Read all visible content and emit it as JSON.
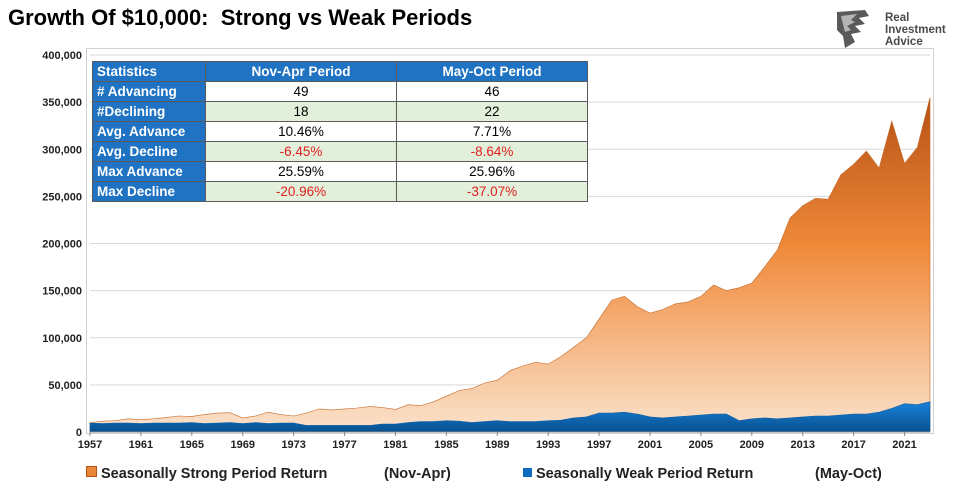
{
  "title": "Growth Of $10,000:  Strong vs Weak Periods",
  "logo": {
    "line1": "Real",
    "line2": "Investment",
    "line3": "Advice",
    "icon": "eagle-head-icon"
  },
  "colors": {
    "strong": "#e8863a",
    "strong_dark": "#b85418",
    "strong_light": "#fad9bd",
    "weak": "#0d6cc0",
    "header": "#1f73c2",
    "alt_row": "#e2efda",
    "negative": "#e02020"
  },
  "stats_table": {
    "headers": [
      "Statistics",
      "Nov-Apr Period",
      "May-Oct Period"
    ],
    "rows": [
      {
        "label": "# Advancing",
        "nov_apr": "49",
        "may_oct": "46"
      },
      {
        "label": "#Declining",
        "nov_apr": "18",
        "may_oct": "22"
      },
      {
        "label": "Avg. Advance",
        "nov_apr": "10.46%",
        "may_oct": "7.71%"
      },
      {
        "label": "Avg. Decline",
        "nov_apr": "-6.45%",
        "may_oct": "-8.64%"
      },
      {
        "label": "Max Advance",
        "nov_apr": "25.59%",
        "may_oct": "25.96%"
      },
      {
        "label": "Max Decline",
        "nov_apr": "-20.96%",
        "may_oct": "-37.07%"
      }
    ]
  },
  "legend": {
    "strong_label": "Seasonally Strong Period Return",
    "strong_period": "(Nov-Apr)",
    "weak_label": "Seasonally Weak Period Return",
    "weak_period": "(May-Oct)"
  },
  "chart_data": {
    "type": "area",
    "title": "Growth Of $10,000:  Strong vs Weak Periods",
    "ylim": [
      0,
      400000
    ],
    "yticks": [
      0,
      50000,
      100000,
      150000,
      200000,
      250000,
      300000,
      350000,
      400000
    ],
    "ytick_labels": [
      "0",
      "50,000",
      "100,000",
      "150,000",
      "200,000",
      "250,000",
      "300,000",
      "350,000",
      "400,000"
    ],
    "xlim": [
      1957,
      2023
    ],
    "xticks": [
      1957,
      1961,
      1965,
      1969,
      1973,
      1977,
      1981,
      1985,
      1989,
      1993,
      1997,
      2001,
      2005,
      2009,
      2013,
      2017,
      2021
    ],
    "grid": "horizontal",
    "legend_position": "bottom",
    "x": [
      1957,
      1958,
      1959,
      1960,
      1961,
      1962,
      1963,
      1964,
      1965,
      1966,
      1967,
      1968,
      1969,
      1970,
      1971,
      1972,
      1973,
      1974,
      1975,
      1976,
      1977,
      1978,
      1979,
      1980,
      1981,
      1982,
      1983,
      1984,
      1985,
      1986,
      1987,
      1988,
      1989,
      1990,
      1991,
      1992,
      1993,
      1994,
      1995,
      1996,
      1997,
      1998,
      1999,
      2000,
      2001,
      2002,
      2003,
      2004,
      2005,
      2006,
      2007,
      2008,
      2009,
      2010,
      2011,
      2012,
      2013,
      2014,
      2015,
      2016,
      2017,
      2018,
      2019,
      2020,
      2021,
      2022,
      2023
    ],
    "series": [
      {
        "name": "Seasonally Strong Period Return",
        "values": [
          10000,
          11500,
          12000,
          14000,
          13000,
          14000,
          15500,
          17000,
          16500,
          18500,
          20000,
          20500,
          15000,
          17000,
          21000,
          18500,
          17000,
          20000,
          24500,
          23500,
          24500,
          25500,
          27000,
          26000,
          24000,
          29000,
          28000,
          32000,
          38000,
          44000,
          46000,
          52000,
          55000,
          65000,
          70000,
          74000,
          72000,
          80000,
          90000,
          100000,
          120000,
          140000,
          144000,
          133000,
          126000,
          130000,
          136000,
          138000,
          144000,
          156000,
          150000,
          153000,
          158000,
          175000,
          193000,
          227000,
          240000,
          248000,
          247000,
          273000,
          284000,
          298000,
          280000,
          330000,
          285000,
          302000,
          355000
        ]
      },
      {
        "name": "Seasonally Weak Period Return",
        "values": [
          9500,
          9000,
          9500,
          9500,
          9000,
          9500,
          9500,
          9500,
          10000,
          9000,
          9500,
          10000,
          9000,
          10000,
          9000,
          9500,
          9500,
          7000,
          7000,
          7000,
          7000,
          7000,
          7000,
          8500,
          8500,
          10000,
          11000,
          11000,
          12000,
          11500,
          10000,
          11000,
          12000,
          11000,
          11000,
          11000,
          12000,
          12500,
          15000,
          16000,
          20000,
          20000,
          21000,
          19000,
          16000,
          15000,
          16000,
          17000,
          18000,
          19000,
          19000,
          12000,
          14000,
          15000,
          14000,
          15000,
          16000,
          17000,
          17000,
          18000,
          19000,
          19000,
          21000,
          25000,
          30000,
          29000,
          32000
        ]
      }
    ]
  }
}
